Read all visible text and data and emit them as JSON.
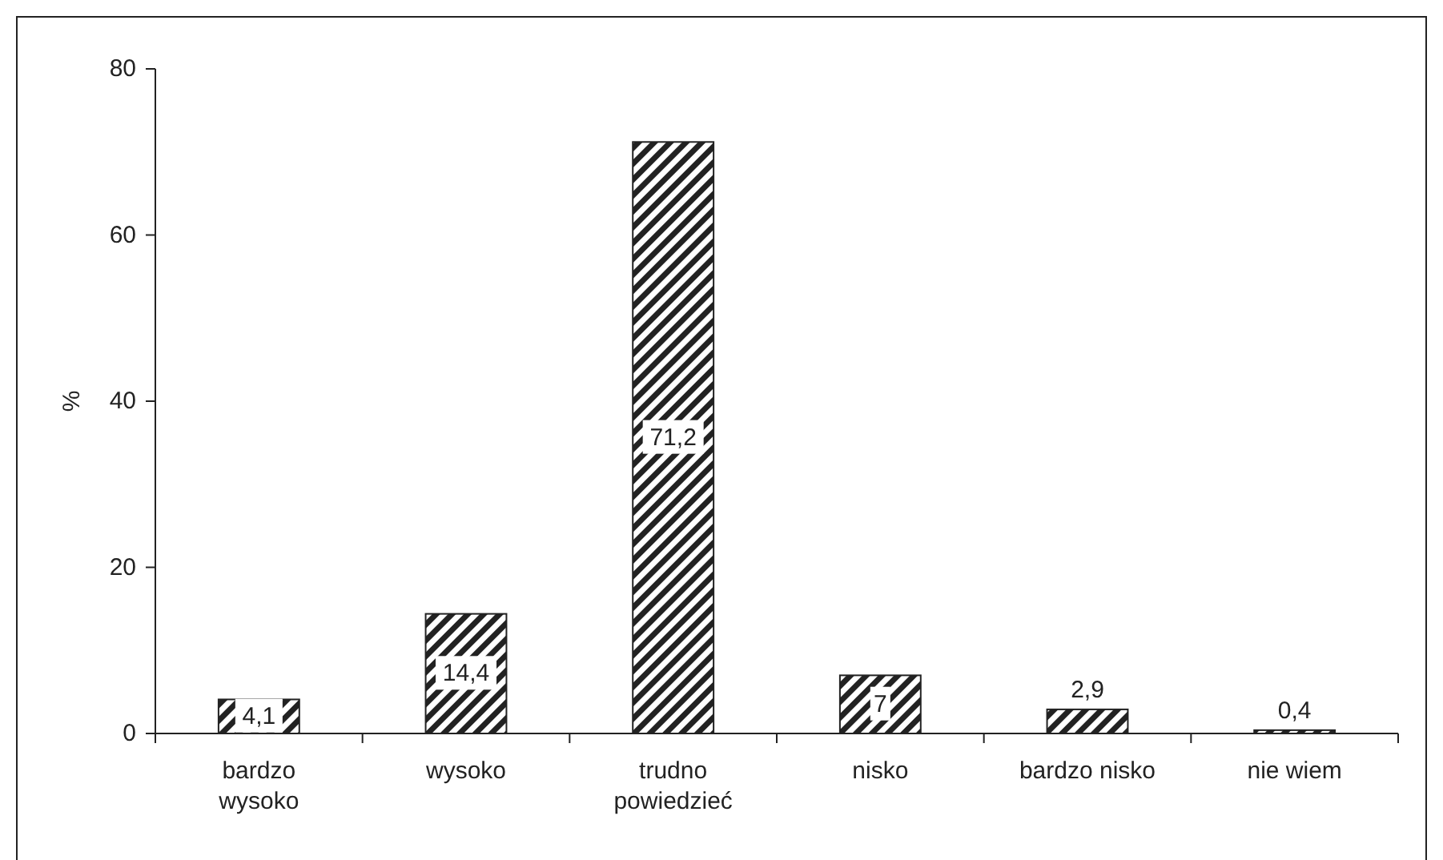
{
  "chart_data": {
    "type": "bar",
    "ylabel": "%",
    "categories": [
      "bardzo wysoko",
      "wysoko",
      "trudno powiedzieć",
      "nisko",
      "bardzo nisko",
      "nie wiem"
    ],
    "values": [
      4.1,
      14.4,
      71.2,
      7,
      2.9,
      0.4
    ],
    "value_labels": [
      "4,1",
      "14,4",
      "71,2",
      "7",
      "2,9",
      "0,4"
    ],
    "color": "#222222",
    "ylim": [
      0,
      80
    ],
    "yticks": [
      0,
      20,
      40,
      60,
      80
    ],
    "grid": false
  }
}
